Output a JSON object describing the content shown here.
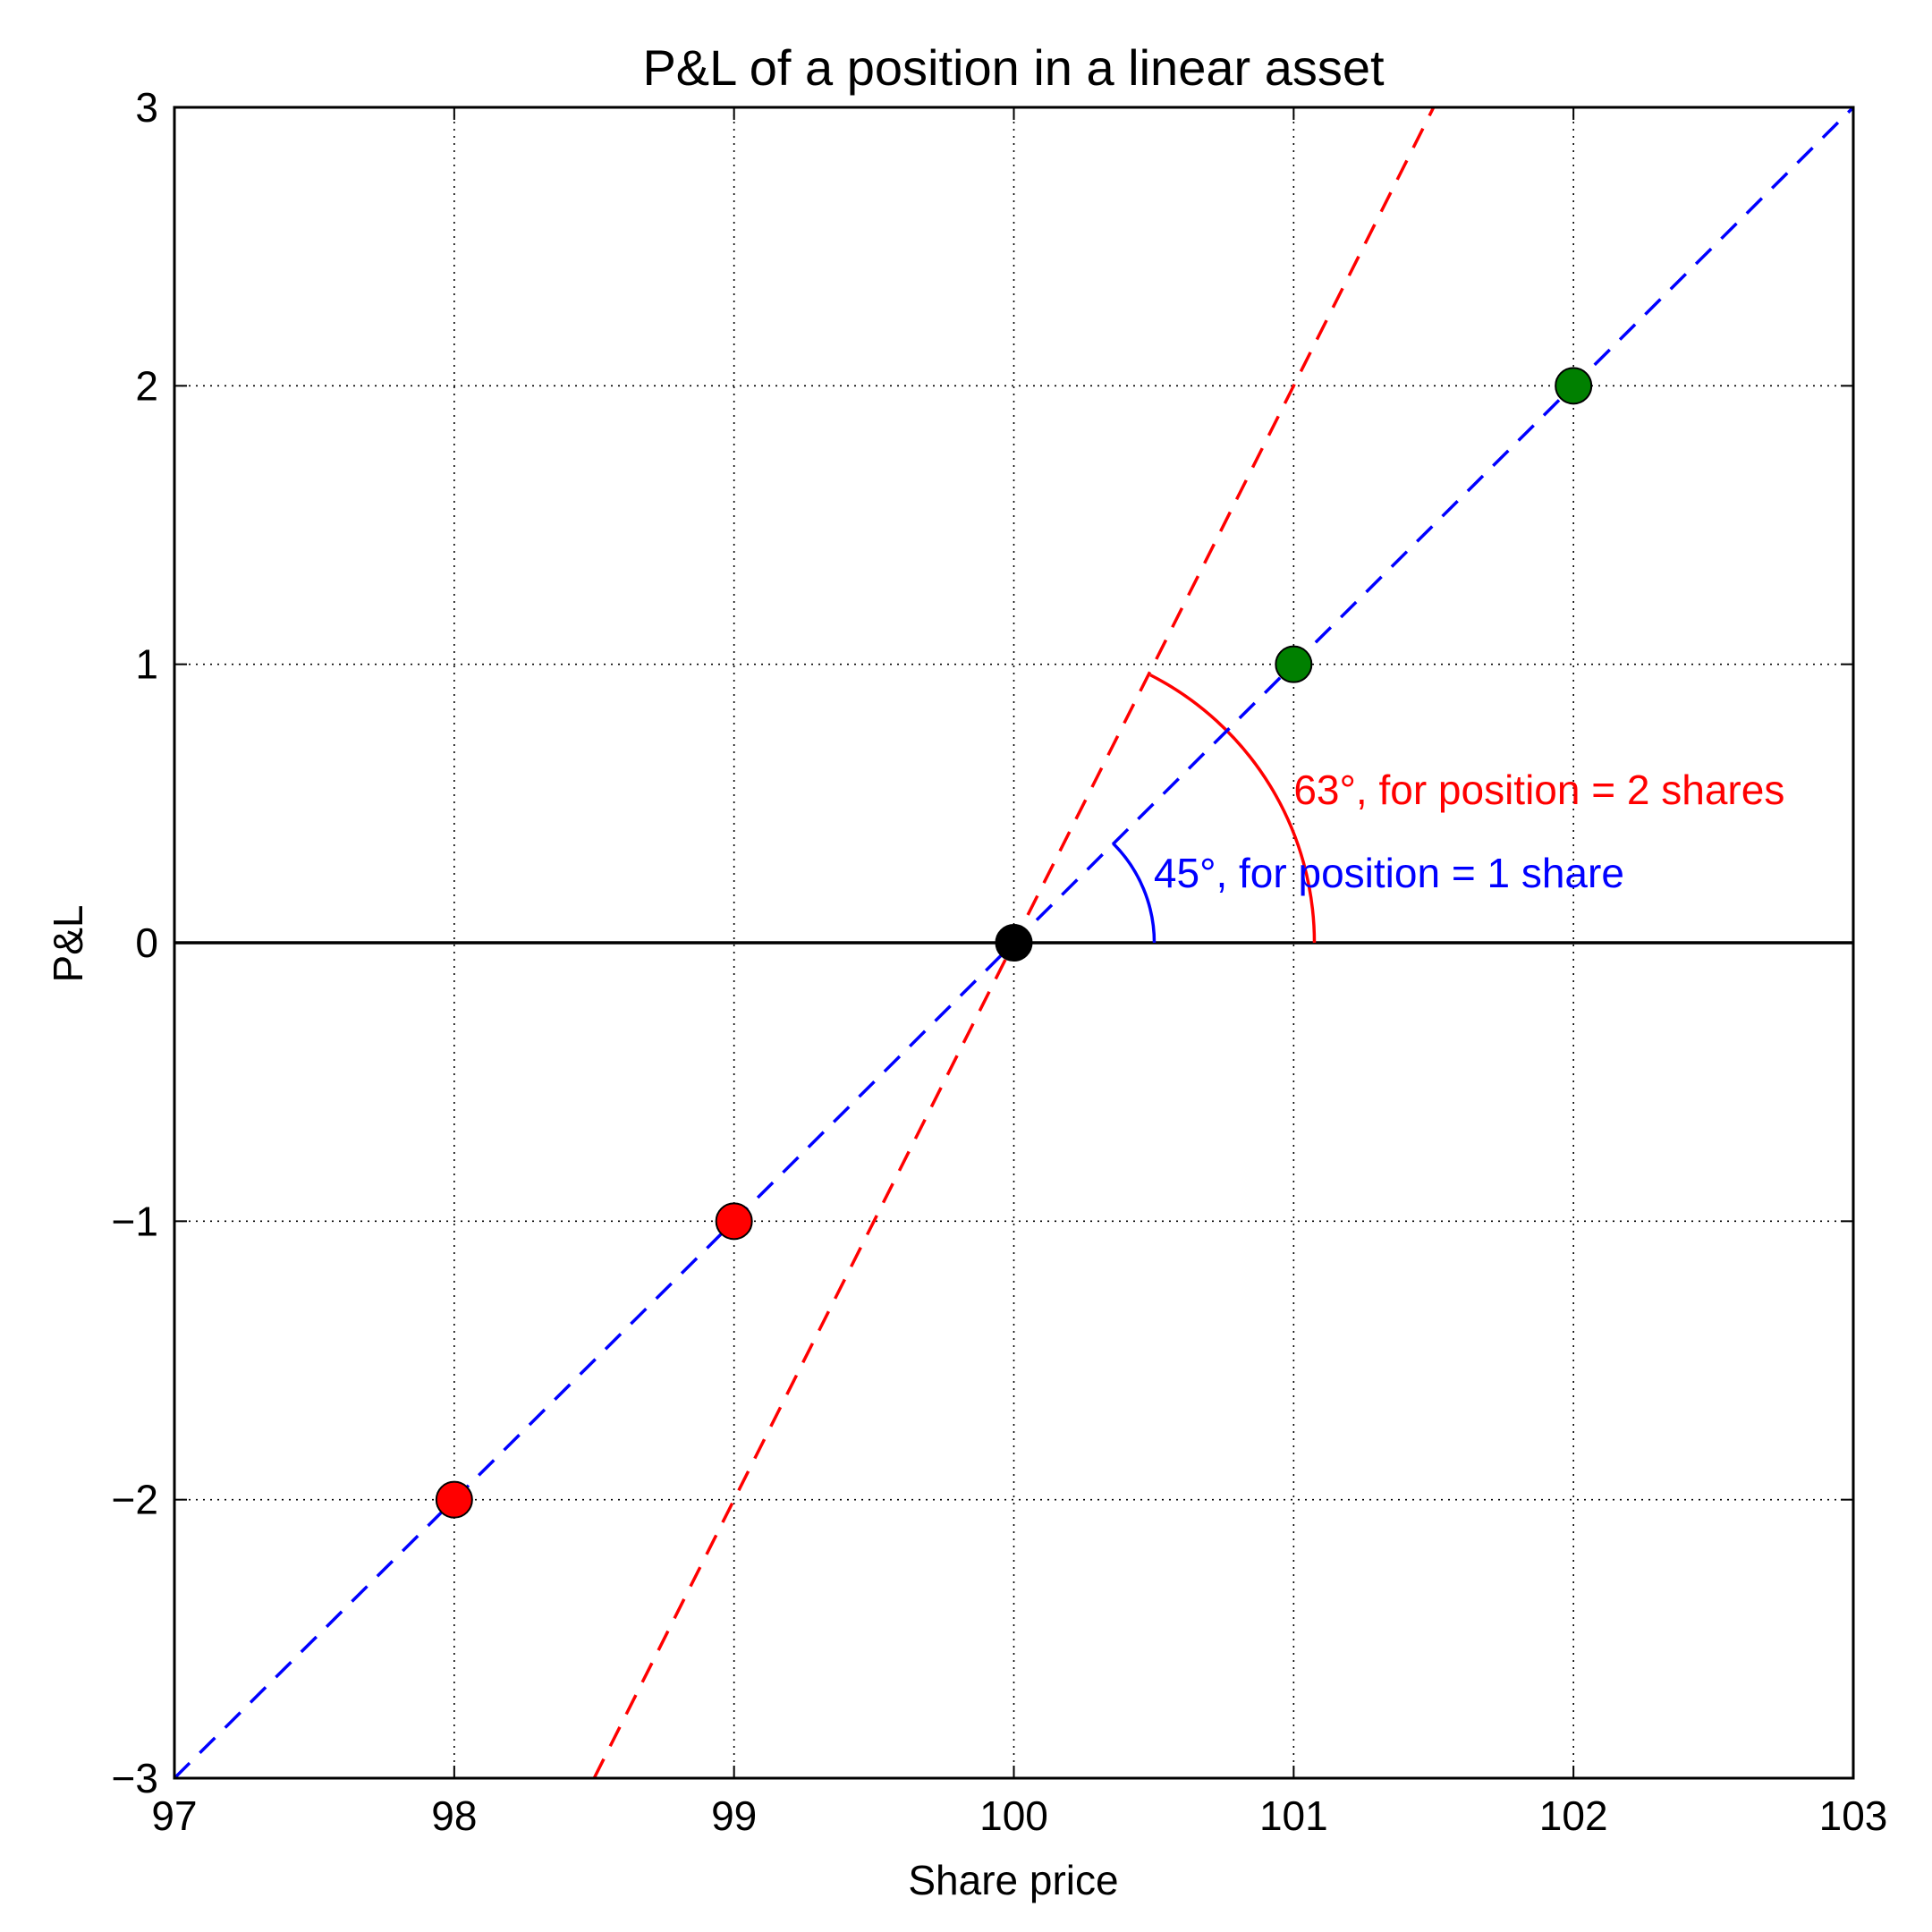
{
  "chart_data": {
    "type": "line",
    "title": "P&L of a position in a linear asset",
    "xlabel": "Share price",
    "ylabel": "P&L",
    "xlim": [
      97,
      103
    ],
    "ylim": [
      -3,
      3
    ],
    "xticks": [
      97,
      98,
      99,
      100,
      101,
      102,
      103
    ],
    "xtick_labels": [
      "97",
      "98",
      "99",
      "100",
      "101",
      "102",
      "103"
    ],
    "yticks": [
      -3,
      -2,
      -1,
      0,
      1,
      2,
      3
    ],
    "ytick_labels": [
      "−3",
      "−2",
      "−1",
      "0",
      "1",
      "2",
      "3"
    ],
    "grid": true,
    "series": [
      {
        "style": "dashed",
        "color": "#0000ff",
        "x": [
          97,
          103
        ],
        "y": [
          -3,
          3
        ]
      },
      {
        "style": "dashed",
        "color": "#ff0000",
        "x": [
          98.5,
          101.5
        ],
        "y": [
          -3,
          3
        ]
      }
    ],
    "points": [
      {
        "x": 98,
        "y": -2,
        "color": "#ff0000"
      },
      {
        "x": 99,
        "y": -1,
        "color": "#ff0000"
      },
      {
        "x": 100,
        "y": 0,
        "color": "#000000"
      },
      {
        "x": 101,
        "y": 1,
        "color": "#008000"
      },
      {
        "x": 102,
        "y": 2,
        "color": "#008000"
      }
    ],
    "annotations": [
      {
        "text": "45°, for position = 1 share",
        "color": "#0000ff",
        "angle_deg": 45,
        "x": 100.5,
        "y": 0.25
      },
      {
        "text": "63°, for position = 2 shares",
        "color": "#ff0000",
        "angle_deg": 63,
        "x": 101.0,
        "y": 0.55
      }
    ]
  }
}
